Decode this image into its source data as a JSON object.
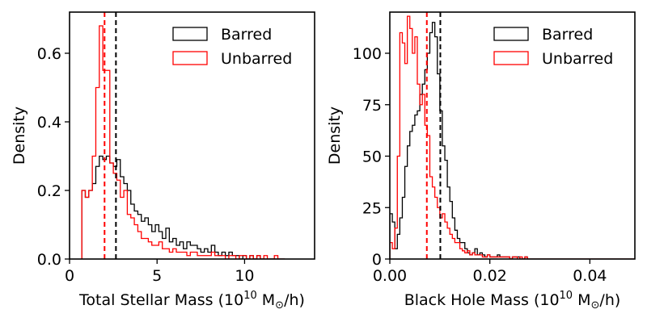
{
  "chart_data": [
    {
      "type": "histogram",
      "xlabel": {
        "prefix": "Total Stellar Mass (10",
        "exp": "10",
        "suffix": " M",
        "sub": "⊙",
        "tail": "/h)"
      },
      "ylabel": "Density",
      "xlim": [
        0,
        14
      ],
      "ylim": [
        0,
        0.72
      ],
      "xticks": [
        0,
        5,
        10
      ],
      "xtick_labels": [
        "0",
        "5",
        "10"
      ],
      "yticks": [
        0,
        0.2,
        0.4,
        0.6
      ],
      "ytick_labels": [
        "0.0",
        "0.2",
        "0.4",
        "0.6"
      ],
      "legend": {
        "placement": "top-right"
      },
      "series": [
        {
          "name": "Barred",
          "color": "#000000",
          "bin_start": 0.7,
          "bin_width": 0.2,
          "values": [
            0.2,
            0.18,
            0.2,
            0.22,
            0.27,
            0.3,
            0.29,
            0.3,
            0.28,
            0.27,
            0.29,
            0.24,
            0.22,
            0.2,
            0.16,
            0.14,
            0.13,
            0.11,
            0.12,
            0.1,
            0.08,
            0.1,
            0.08,
            0.06,
            0.09,
            0.05,
            0.06,
            0.04,
            0.05,
            0.03,
            0.05,
            0.04,
            0.04,
            0.03,
            0.02,
            0.03,
            0.02,
            0.04,
            0.02,
            0.01,
            0.02,
            0.01,
            0.02,
            0.01,
            0.01,
            0.0,
            0.01,
            0.0,
            0.01,
            0.0,
            0.01,
            0.0,
            0.0,
            0.0,
            0.0,
            0.0,
            0.0,
            0.0
          ],
          "median": 2.65
        },
        {
          "name": "Unbarred",
          "color": "#ff0000",
          "bin_start": 0.7,
          "bin_width": 0.2,
          "values": [
            0.2,
            0.18,
            0.2,
            0.3,
            0.5,
            0.68,
            0.55,
            0.55,
            0.28,
            0.25,
            0.23,
            0.18,
            0.2,
            0.13,
            0.12,
            0.1,
            0.08,
            0.06,
            0.06,
            0.05,
            0.04,
            0.04,
            0.05,
            0.03,
            0.03,
            0.02,
            0.03,
            0.02,
            0.02,
            0.02,
            0.01,
            0.02,
            0.02,
            0.01,
            0.01,
            0.01,
            0.01,
            0.02,
            0.01,
            0.01,
            0.01,
            0.0,
            0.01,
            0.01,
            0.0,
            0.01,
            0.01,
            0.0,
            0.01,
            0.0,
            0.01,
            0.0,
            0.01,
            0.0,
            0.0,
            0.01,
            0.0,
            0.0
          ],
          "median": 2.0
        }
      ]
    },
    {
      "type": "histogram",
      "xlabel": {
        "prefix": "Black Hole Mass (10",
        "exp": "10",
        "suffix": " M",
        "sub": "⊙",
        "tail": "/h)"
      },
      "ylabel": "Density",
      "xlim": [
        0,
        0.049
      ],
      "ylim": [
        0,
        120
      ],
      "xticks": [
        0,
        0.02,
        0.04
      ],
      "xtick_labels": [
        "0.00",
        "0.02",
        "0.04"
      ],
      "yticks": [
        0,
        25,
        50,
        75,
        100
      ],
      "ytick_labels": [
        "0",
        "25",
        "50",
        "75",
        "100"
      ],
      "legend": {
        "placement": "top-right"
      },
      "series": [
        {
          "name": "Barred",
          "color": "#000000",
          "bin_start": 0.0,
          "bin_width": 0.0005,
          "values": [
            22,
            18,
            5,
            12,
            20,
            30,
            45,
            55,
            62,
            65,
            70,
            72,
            80,
            85,
            92,
            100,
            110,
            115,
            108,
            90,
            72,
            55,
            48,
            35,
            28,
            20,
            14,
            10,
            8,
            8,
            5,
            3,
            2,
            3,
            5,
            2,
            3,
            2,
            1,
            2,
            1,
            1,
            1,
            2,
            1,
            1,
            1,
            1,
            0,
            1,
            1,
            1,
            0,
            0,
            1,
            0,
            0,
            0,
            0,
            0,
            0,
            0,
            0,
            0,
            0,
            0,
            0,
            0,
            0,
            0,
            0,
            0,
            0,
            0,
            0,
            0,
            0,
            0,
            0,
            0,
            0,
            0,
            0,
            0,
            0,
            0,
            0,
            0,
            0,
            0,
            0,
            0,
            0,
            0,
            0,
            0,
            0,
            0
          ],
          "median": 0.0101
        },
        {
          "name": "Unbarred",
          "color": "#ff0000",
          "bin_start": 0.0,
          "bin_width": 0.0005,
          "values": [
            8,
            5,
            15,
            50,
            110,
            105,
            95,
            118,
            112,
            100,
            108,
            85,
            75,
            80,
            65,
            60,
            40,
            35,
            30,
            25,
            20,
            22,
            18,
            15,
            12,
            10,
            8,
            8,
            5,
            4,
            3,
            4,
            2,
            3,
            2,
            2,
            2,
            1,
            1,
            2,
            1,
            1,
            1,
            1,
            1,
            1,
            1,
            1,
            0,
            1,
            1,
            0,
            1,
            0,
            1,
            0,
            0,
            0,
            0,
            0,
            0,
            0,
            0,
            0,
            0,
            0,
            0,
            0,
            0,
            0,
            0,
            0,
            0,
            0,
            0,
            0,
            0,
            0,
            0,
            0,
            0,
            0,
            0,
            0,
            0,
            0,
            0,
            0,
            0,
            0,
            0,
            0,
            0,
            0,
            0,
            0,
            0,
            0
          ],
          "median": 0.0074
        }
      ]
    }
  ]
}
